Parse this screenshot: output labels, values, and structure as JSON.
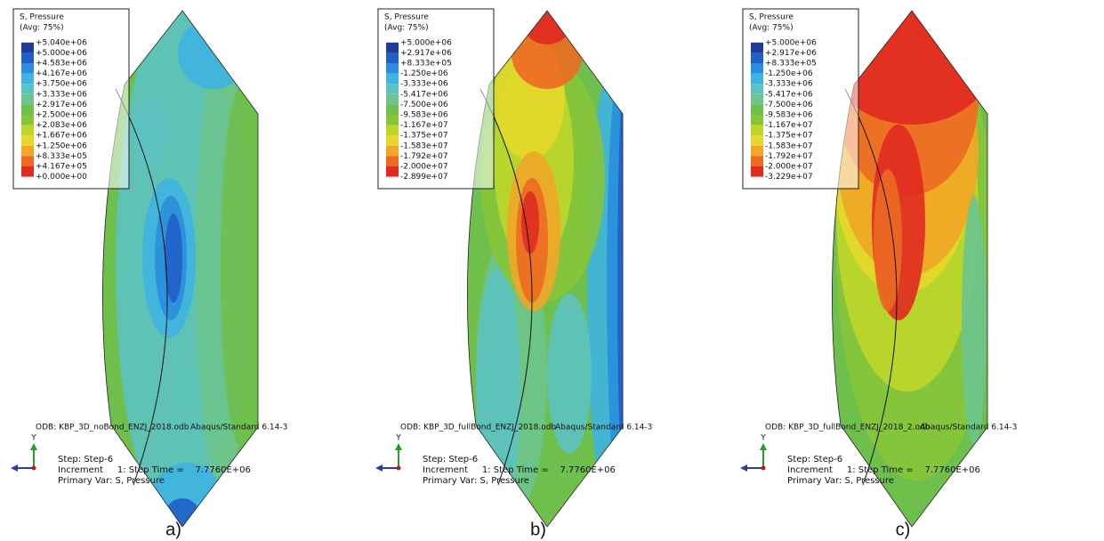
{
  "legend_colors": [
    "#1f3c98",
    "#2060c8",
    "#2a8edc",
    "#3fb4e0",
    "#5cc2c0",
    "#6cc48e",
    "#6fbf4e",
    "#86c53a",
    "#bcd62a",
    "#e6d82a",
    "#f0a626",
    "#ec6a22",
    "#e02a20"
  ],
  "panels": [
    {
      "legend_title": "S, Pressure",
      "legend_avg": "(Avg: 75%)",
      "legend_labels": [
        "+5.040e+06",
        "+5.000e+06",
        "+4.583e+06",
        "+4.167e+06",
        "+3.750e+06",
        "+3.333e+06",
        "+2.917e+06",
        "+2.500e+06",
        "+2.083e+06",
        "+1.667e+06",
        "+1.250e+06",
        "+8.333e+05",
        "+4.167e+05",
        "+0.000e+00"
      ],
      "odb": "ODB: KBP_3D_noBond_ENZJ_2018.odb",
      "solver": "Abaqus/Standard 6.14-3",
      "step": "Step: Step-6",
      "increment": "Increment     1: Step Time =    7.7760E+06",
      "primary_var": "Primary Var: S, Pressure",
      "axis": "Y",
      "label": "a)"
    },
    {
      "legend_title": "S, Pressure",
      "legend_avg": "(Avg: 75%)",
      "legend_labels": [
        "+5.000e+06",
        "+2.917e+06",
        "+8.333e+05",
        "-1.250e+06",
        "-3.333e+06",
        "-5.417e+06",
        "-7.500e+06",
        "-9.583e+06",
        "-1.167e+07",
        "-1.375e+07",
        "-1.583e+07",
        "-1.792e+07",
        "-2.000e+07",
        "-2.899e+07"
      ],
      "odb": "ODB: KBP_3D_fullBond_ENZJ_2018.odb",
      "solver": "Abaqus/Standard 6.14-3",
      "step": "Step: Step-6",
      "increment": "Increment     1: Step Time =    7.7760E+06",
      "primary_var": "Primary Var: S, Pressure",
      "axis": "Y",
      "label": "b)"
    },
    {
      "legend_title": "S, Pressure",
      "legend_avg": "(Avg: 75%)",
      "legend_labels": [
        "+5.000e+06",
        "+2.917e+06",
        "+8.333e+05",
        "-1.250e+06",
        "-3.333e+06",
        "-5.417e+06",
        "-7.500e+06",
        "-9.583e+06",
        "-1.167e+07",
        "-1.375e+07",
        "-1.583e+07",
        "-1.792e+07",
        "-2.000e+07",
        "-3.229e+07"
      ],
      "odb": "ODB: KBP_3D_fullBond_ENZJ_2018_2.odb",
      "solver": "Abaqus/Standard 6.14-3",
      "step": "Step: Step-6",
      "increment": "Increment     1: Step Time =    7.7760E+06",
      "primary_var": "Primary Var: S, Pressure",
      "axis": "Y",
      "label": "c)"
    }
  ]
}
